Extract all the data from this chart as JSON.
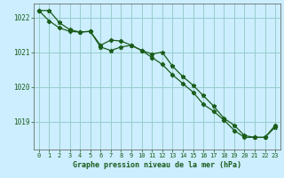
{
  "title": "Graphe pression niveau de la mer (hPa)",
  "background_color": "#cceeff",
  "grid_color": "#99cccc",
  "line_color": "#1a5c1a",
  "marker_color": "#1a5c1a",
  "xlim": [
    -0.5,
    23.5
  ],
  "ylim": [
    1018.2,
    1022.4
  ],
  "yticks": [
    1019,
    1020,
    1021,
    1022
  ],
  "xtick_labels": [
    "0",
    "1",
    "2",
    "3",
    "4",
    "5",
    "6",
    "7",
    "8",
    "9",
    "10",
    "11",
    "12",
    "13",
    "14",
    "15",
    "16",
    "17",
    "18",
    "19",
    "20",
    "21",
    "22",
    "23"
  ],
  "series1_x": [
    0,
    1,
    2,
    3,
    4,
    5,
    6,
    7,
    8,
    9,
    10,
    11,
    12,
    13,
    14,
    15,
    16,
    17,
    18,
    19,
    20,
    21,
    22,
    23
  ],
  "series1_y": [
    1022.2,
    1022.2,
    1021.85,
    1021.65,
    1021.58,
    1021.6,
    1021.15,
    1021.05,
    1021.15,
    1021.2,
    1021.05,
    1020.95,
    1021.0,
    1020.6,
    1020.3,
    1020.05,
    1019.75,
    1019.45,
    1019.1,
    1018.9,
    1018.6,
    1018.55,
    1018.55,
    1018.85
  ],
  "series2_x": [
    0,
    1,
    2,
    3,
    4,
    5,
    6,
    7,
    8,
    9,
    10,
    11,
    12,
    13,
    14,
    15,
    16,
    17,
    18,
    19,
    20,
    21,
    22,
    23
  ],
  "series2_y": [
    1022.2,
    1021.9,
    1021.7,
    1021.6,
    1021.58,
    1021.6,
    1021.2,
    1021.35,
    1021.32,
    1021.2,
    1021.05,
    1020.85,
    1020.65,
    1020.35,
    1020.1,
    1019.85,
    1019.5,
    1019.3,
    1019.05,
    1018.75,
    1018.55,
    1018.55,
    1018.55,
    1018.9
  ]
}
